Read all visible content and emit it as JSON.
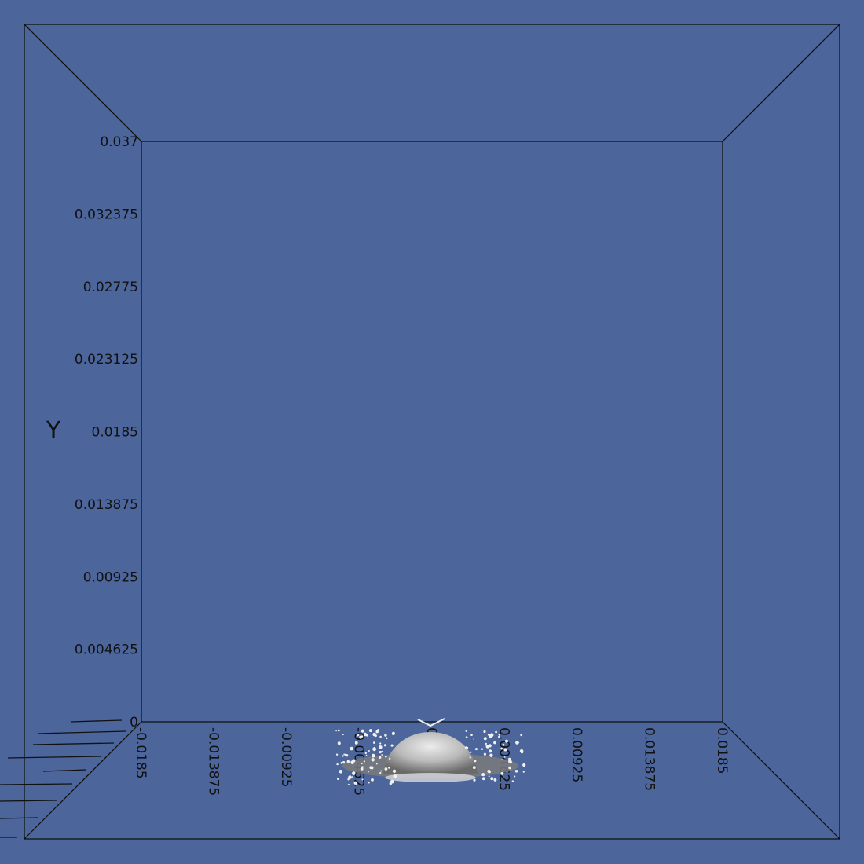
{
  "colors": {
    "background": "#4c659a",
    "lines": "#0d0d0d",
    "surface_light": "#e6e6e6",
    "surface_dark": "#6d6d6d"
  },
  "axes": {
    "y_title": "Y",
    "y_ticks": [
      "0.037",
      "0.032375",
      "0.02775",
      "0.023125",
      "0.0185",
      "0.013875",
      "0.00925",
      "0.004625",
      "0"
    ],
    "x_ticks": [
      "-0.0185",
      "-0.013875",
      "-0.00925",
      "-0.004625",
      "0",
      "0.004625",
      "0.00925",
      "0.013875",
      "0.0185"
    ]
  },
  "droplet": {
    "description_icon": "droplet-splash-icon"
  }
}
